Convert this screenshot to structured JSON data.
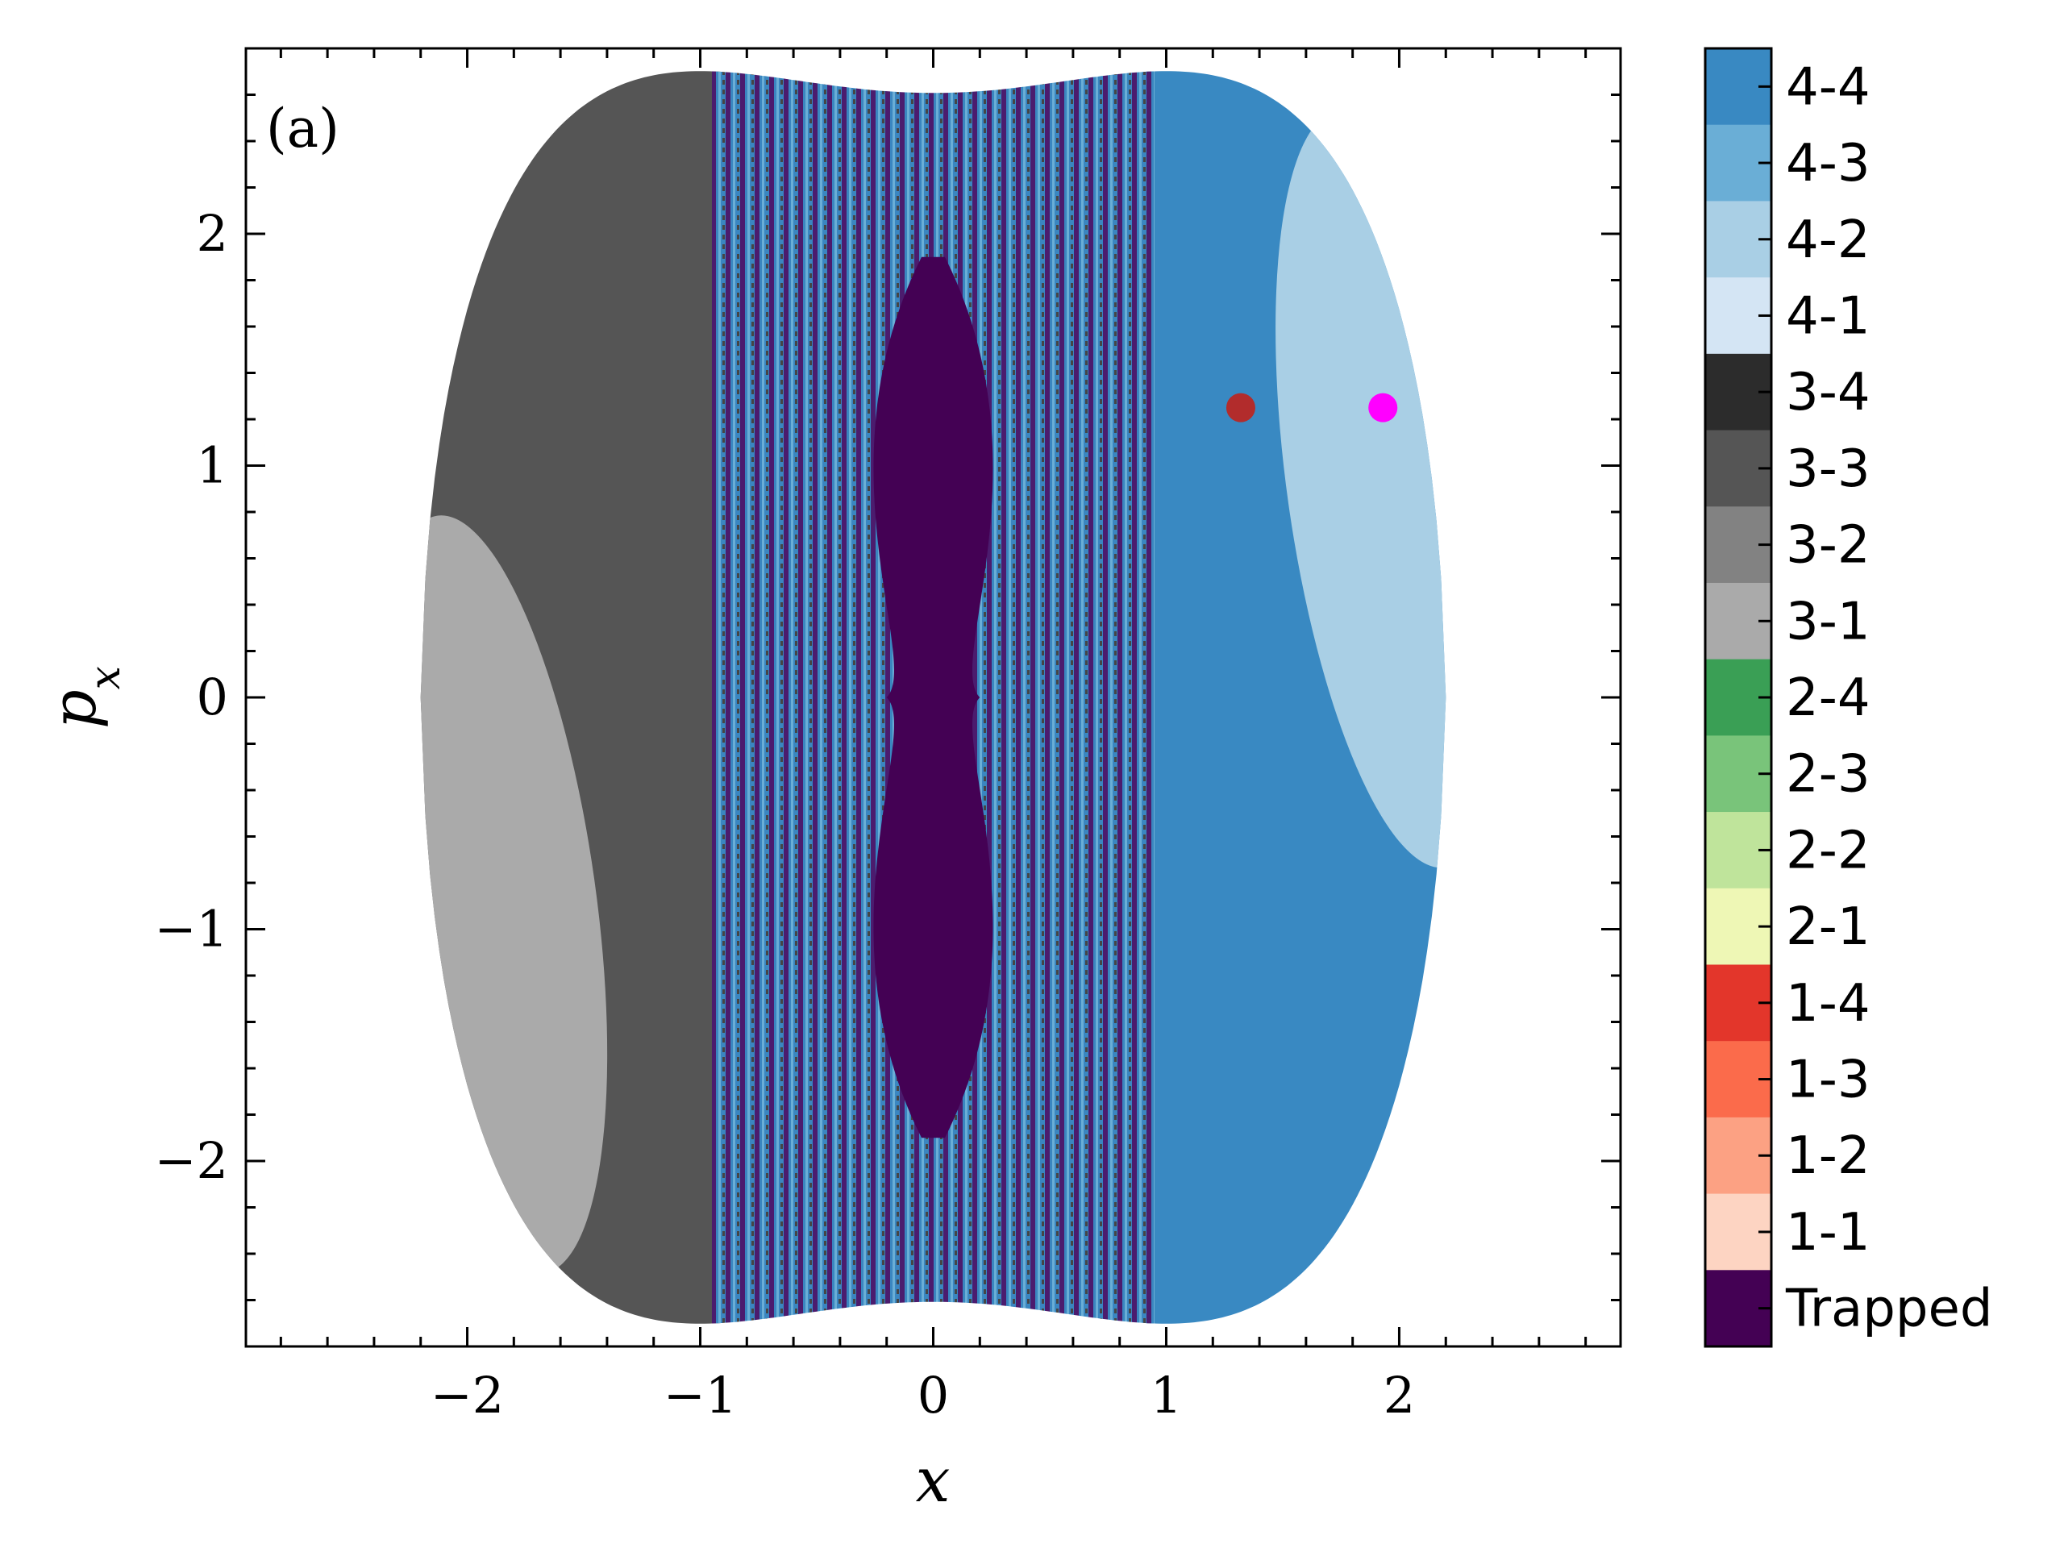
{
  "chart_data": {
    "type": "heatmap",
    "panel_label": "(a)",
    "xlabel": "x",
    "ylabel_base": "p",
    "ylabel_sub": "x",
    "xlim": [
      -2.95,
      2.95
    ],
    "ylim": [
      -2.8,
      2.8
    ],
    "xticks": [
      -2,
      -1,
      0,
      1,
      2
    ],
    "yticks": [
      -2,
      -1,
      0,
      1,
      2
    ],
    "xtick_labels": [
      "−2",
      "−1",
      "0",
      "1",
      "2"
    ],
    "ytick_labels": [
      "−2",
      "−1",
      "0",
      "1",
      "2"
    ],
    "colorbar": [
      {
        "label": "4-4",
        "color": "#3989c2"
      },
      {
        "label": "4-3",
        "color": "#6aaed6"
      },
      {
        "label": "4-2",
        "color": "#a9cfe5"
      },
      {
        "label": "4-1",
        "color": "#d4e5f4"
      },
      {
        "label": "3-4",
        "color": "#2c2c2c"
      },
      {
        "label": "3-3",
        "color": "#555555"
      },
      {
        "label": "3-2",
        "color": "#828282"
      },
      {
        "label": "3-1",
        "color": "#aaaaaa"
      },
      {
        "label": "2-4",
        "color": "#3a9f55"
      },
      {
        "label": "2-3",
        "color": "#79c47a"
      },
      {
        "label": "2-2",
        "color": "#bfe49b"
      },
      {
        "label": "2-1",
        "color": "#eef7b5"
      },
      {
        "label": "1-4",
        "color": "#e3362b"
      },
      {
        "label": "1-3",
        "color": "#fb6b4b"
      },
      {
        "label": "1-2",
        "color": "#fca183"
      },
      {
        "label": "1-1",
        "color": "#fdd4c2"
      },
      {
        "label": "Trapped",
        "color": "#440154"
      }
    ],
    "markers": [
      {
        "x": 1.32,
        "px": 1.25,
        "color": "#b22c2c"
      },
      {
        "x": 1.93,
        "px": 1.25,
        "color": "#ff00ff"
      }
    ]
  }
}
